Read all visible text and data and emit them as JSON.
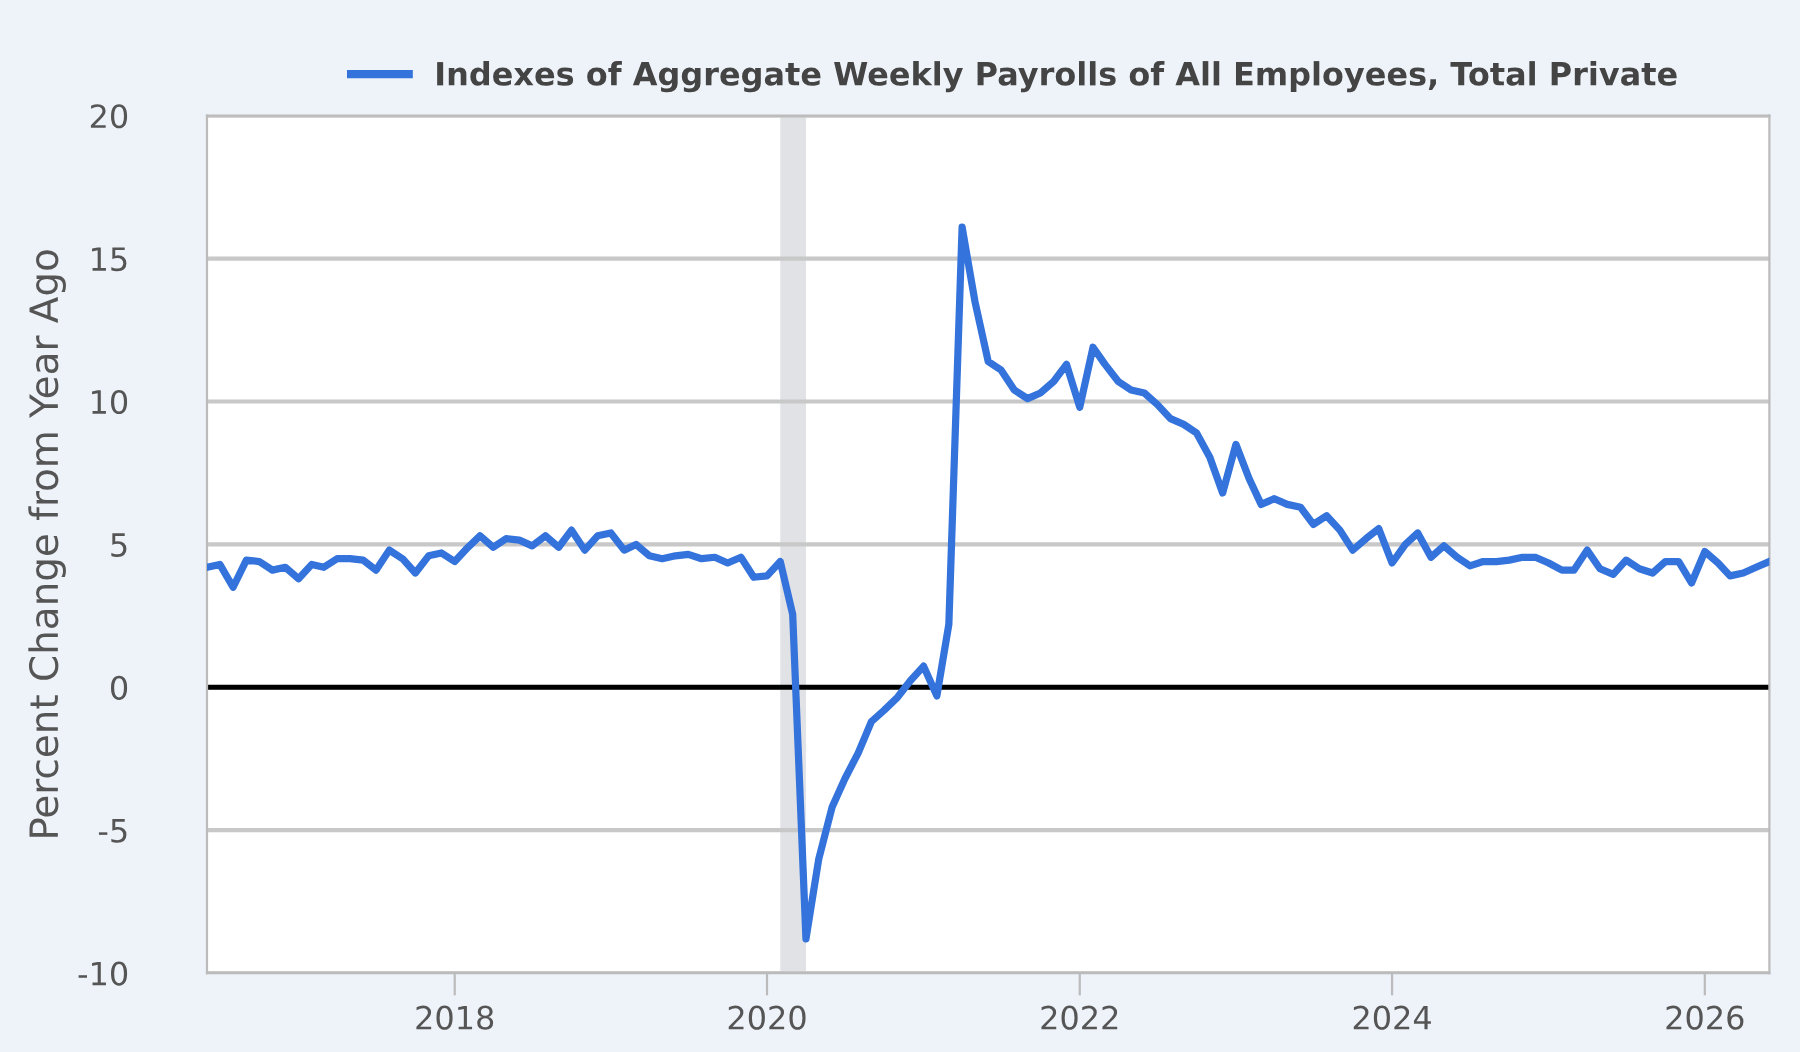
{
  "chart_data": {
    "type": "line",
    "ylabel": "Percent Change from Year Ago",
    "x": [
      "2016-06",
      "2016-07",
      "2016-08",
      "2016-09",
      "2016-10",
      "2016-11",
      "2016-12",
      "2017-01",
      "2017-02",
      "2017-03",
      "2017-04",
      "2017-05",
      "2017-06",
      "2017-07",
      "2017-08",
      "2017-09",
      "2017-10",
      "2017-11",
      "2017-12",
      "2018-01",
      "2018-02",
      "2018-03",
      "2018-04",
      "2018-05",
      "2018-06",
      "2018-07",
      "2018-08",
      "2018-09",
      "2018-10",
      "2018-11",
      "2018-12",
      "2019-01",
      "2019-02",
      "2019-03",
      "2019-04",
      "2019-05",
      "2019-06",
      "2019-07",
      "2019-08",
      "2019-09",
      "2019-10",
      "2019-11",
      "2019-12",
      "2020-01",
      "2020-02",
      "2020-03",
      "2020-04",
      "2020-05",
      "2020-06",
      "2020-07",
      "2020-08",
      "2020-09",
      "2020-10",
      "2020-11",
      "2020-12",
      "2021-01",
      "2021-02",
      "2021-03",
      "2021-04",
      "2021-05",
      "2021-06",
      "2021-07",
      "2021-08",
      "2021-09",
      "2021-10",
      "2021-11",
      "2021-12",
      "2022-01",
      "2022-02",
      "2022-03",
      "2022-04",
      "2022-05",
      "2022-06",
      "2022-07",
      "2022-08",
      "2022-09",
      "2022-10",
      "2022-11",
      "2022-12",
      "2023-01",
      "2023-02",
      "2023-03",
      "2023-04",
      "2023-05",
      "2023-06",
      "2023-07",
      "2023-08",
      "2023-09",
      "2023-10",
      "2023-11",
      "2023-12",
      "2024-01",
      "2024-02",
      "2024-03",
      "2024-04",
      "2024-05",
      "2024-06",
      "2024-07",
      "2024-08",
      "2024-09",
      "2024-10",
      "2024-11",
      "2024-12",
      "2025-01",
      "2025-02",
      "2025-03",
      "2025-04",
      "2025-05",
      "2025-06",
      "2025-07",
      "2025-08",
      "2025-09",
      "2025-10",
      "2025-11",
      "2025-12",
      "2026-01",
      "2026-02",
      "2026-03",
      "2026-04",
      "2026-05",
      "2026-06"
    ],
    "series": [
      {
        "name": "Indexes of Aggregate Weekly Payrolls of All Employees, Total Private",
        "color": "#3473db",
        "values": [
          4.2,
          4.3,
          3.5,
          4.45,
          4.4,
          4.1,
          4.2,
          3.8,
          4.3,
          4.2,
          4.5,
          4.5,
          4.45,
          4.1,
          4.8,
          4.5,
          4.0,
          4.6,
          4.7,
          4.4,
          4.9,
          5.3,
          4.9,
          5.2,
          5.15,
          4.95,
          5.3,
          4.9,
          5.5,
          4.8,
          5.3,
          5.4,
          4.8,
          5.0,
          4.6,
          4.5,
          4.6,
          4.65,
          4.5,
          4.55,
          4.35,
          4.55,
          3.85,
          3.9,
          4.4,
          2.55,
          -8.8,
          -6.0,
          -4.2,
          -3.2,
          -2.3,
          -1.2,
          -0.8,
          -0.35,
          0.23,
          0.74,
          -0.3,
          2.2,
          16.1,
          13.5,
          11.4,
          11.1,
          10.4,
          10.1,
          10.3,
          10.7,
          11.3,
          9.8,
          11.9,
          11.3,
          10.7,
          10.4,
          10.3,
          9.9,
          9.4,
          9.2,
          8.9,
          8.05,
          6.8,
          8.5,
          7.3,
          6.4,
          6.6,
          6.4,
          6.3,
          5.7,
          6.0,
          5.5,
          4.8,
          5.2,
          5.55,
          4.35,
          5.0,
          5.4,
          4.55,
          4.95,
          4.55,
          4.25,
          4.4,
          4.4,
          4.45,
          4.55,
          4.55,
          4.35,
          4.1,
          4.1,
          4.8,
          4.15,
          3.95,
          4.45,
          4.15,
          4.0,
          4.4,
          4.4,
          3.65,
          4.75,
          4.35,
          3.9,
          4.0,
          4.2,
          4.4
        ]
      }
    ],
    "xlim": [
      "2016-06",
      "2026-06"
    ],
    "xticks": [
      "2018",
      "2020",
      "2022",
      "2024",
      "2026"
    ],
    "ylim": [
      -10,
      20
    ],
    "yticks": [
      -10,
      -5,
      0,
      5,
      10,
      15,
      20
    ],
    "ref_lines": [
      {
        "axis": "y",
        "value": 0,
        "color": "#000000"
      }
    ],
    "bands": [
      {
        "axis": "x",
        "from": "2020-02",
        "to": "2020-04",
        "color": "#e1e2e6"
      }
    ],
    "grid": "y",
    "legend": "top left"
  }
}
